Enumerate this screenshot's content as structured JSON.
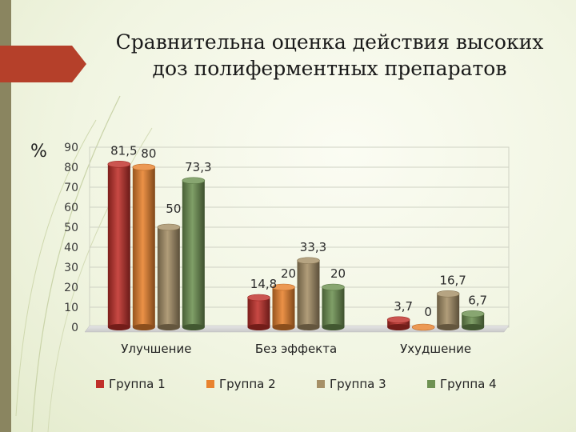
{
  "slide": {
    "title_line1": "Сравнительна оценка действия высоких",
    "title_line2": "доз полиферментных препаратов"
  },
  "chart_data": {
    "type": "bar",
    "ylabel": "%",
    "ylim": [
      0,
      90
    ],
    "yticks": [
      0,
      10,
      20,
      30,
      40,
      50,
      60,
      70,
      80,
      90
    ],
    "categories": [
      "Улучшение",
      "Без эффекта",
      "Ухудшение"
    ],
    "series": [
      {
        "name": "Группа 1",
        "color": "#c0302a",
        "values": [
          81.5,
          14.8,
          3.7
        ],
        "labels": [
          "81,5",
          "14,8",
          "3,7"
        ]
      },
      {
        "name": "Группа 2",
        "color": "#e8822e",
        "values": [
          80,
          20,
          0
        ],
        "labels": [
          "80",
          "20",
          "0"
        ]
      },
      {
        "name": "Группа 3",
        "color": "#a69067",
        "values": [
          50,
          33.3,
          16.7
        ],
        "labels": [
          "50",
          "33,3",
          "16,7"
        ]
      },
      {
        "name": "Группа 4",
        "color": "#6e9252",
        "values": [
          73.3,
          20,
          6.7
        ],
        "labels": [
          "73,3",
          "20",
          "6,7"
        ]
      }
    ],
    "grid": true,
    "legend": "bottom"
  }
}
